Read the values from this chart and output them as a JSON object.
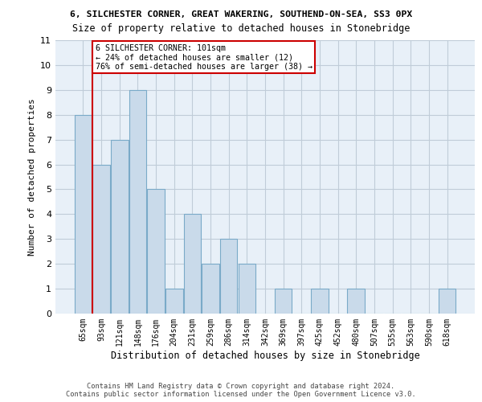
{
  "title_line1": "6, SILCHESTER CORNER, GREAT WAKERING, SOUTHEND-ON-SEA, SS3 0PX",
  "title_line2": "Size of property relative to detached houses in Stonebridge",
  "xlabel": "Distribution of detached houses by size in Stonebridge",
  "ylabel": "Number of detached properties",
  "categories": [
    "65sqm",
    "93sqm",
    "121sqm",
    "148sqm",
    "176sqm",
    "204sqm",
    "231sqm",
    "259sqm",
    "286sqm",
    "314sqm",
    "342sqm",
    "369sqm",
    "397sqm",
    "425sqm",
    "452sqm",
    "480sqm",
    "507sqm",
    "535sqm",
    "563sqm",
    "590sqm",
    "618sqm"
  ],
  "values": [
    8,
    6,
    7,
    9,
    5,
    1,
    4,
    2,
    3,
    2,
    0,
    1,
    0,
    1,
    0,
    1,
    0,
    0,
    0,
    0,
    1
  ],
  "bar_color": "#c9daea",
  "bar_edge_color": "#7aaac8",
  "ylim": [
    0,
    11
  ],
  "yticks": [
    0,
    1,
    2,
    3,
    4,
    5,
    6,
    7,
    8,
    9,
    10,
    11
  ],
  "property_line_color": "#cc0000",
  "annotation_text": "6 SILCHESTER CORNER: 101sqm\n← 24% of detached houses are smaller (12)\n76% of semi-detached houses are larger (38) →",
  "annotation_box_color": "#ffffff",
  "annotation_box_edge_color": "#cc0000",
  "footer_line1": "Contains HM Land Registry data © Crown copyright and database right 2024.",
  "footer_line2": "Contains public sector information licensed under the Open Government Licence v3.0.",
  "background_color": "#ffffff",
  "axes_bg_color": "#e8f0f8",
  "grid_color": "#c0ccd8"
}
